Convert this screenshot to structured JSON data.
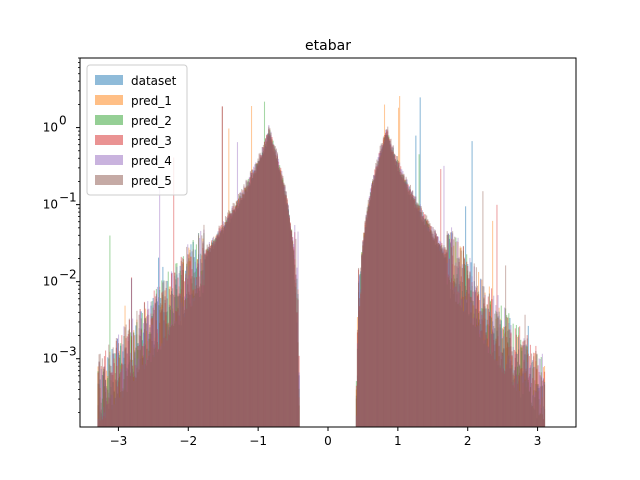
{
  "chart_data": {
    "type": "bar",
    "title": "etabar",
    "xlabel": "",
    "ylabel": "",
    "yscale": "log",
    "xlim": [
      -3.55,
      3.55
    ],
    "ylim": [
      0.00013,
      8.0
    ],
    "xticks": [
      -3,
      -2,
      -1,
      0,
      1,
      2,
      3
    ],
    "xtick_labels": [
      "−3",
      "−2",
      "−1",
      "0",
      "1",
      "2",
      "3"
    ],
    "yticks": [
      0.001,
      0.01,
      0.1,
      1
    ],
    "ytick_bases": [
      "10",
      "10",
      "10",
      "10"
    ],
    "ytick_exps": [
      "−3",
      "−2",
      "−1",
      "0"
    ],
    "legend_position": "top-left",
    "grid": false,
    "gap": [
      -0.4,
      0.4
    ],
    "series": [
      {
        "name": "dataset",
        "color": "#1f77b4"
      },
      {
        "name": "pred_1",
        "color": "#ff7f0e"
      },
      {
        "name": "pred_2",
        "color": "#2ca02c"
      },
      {
        "name": "pred_3",
        "color": "#d62728"
      },
      {
        "name": "pred_4",
        "color": "#9467bd"
      },
      {
        "name": "pred_5",
        "color": "#8c564b"
      }
    ],
    "histogram_profile": {
      "left_mode": [
        -0.85,
        0.85
      ],
      "right_mode": [
        0.85,
        0.85
      ],
      "left_min_x": -3.3,
      "right_max_x": 3.1,
      "spike_max": 2.6
    }
  }
}
